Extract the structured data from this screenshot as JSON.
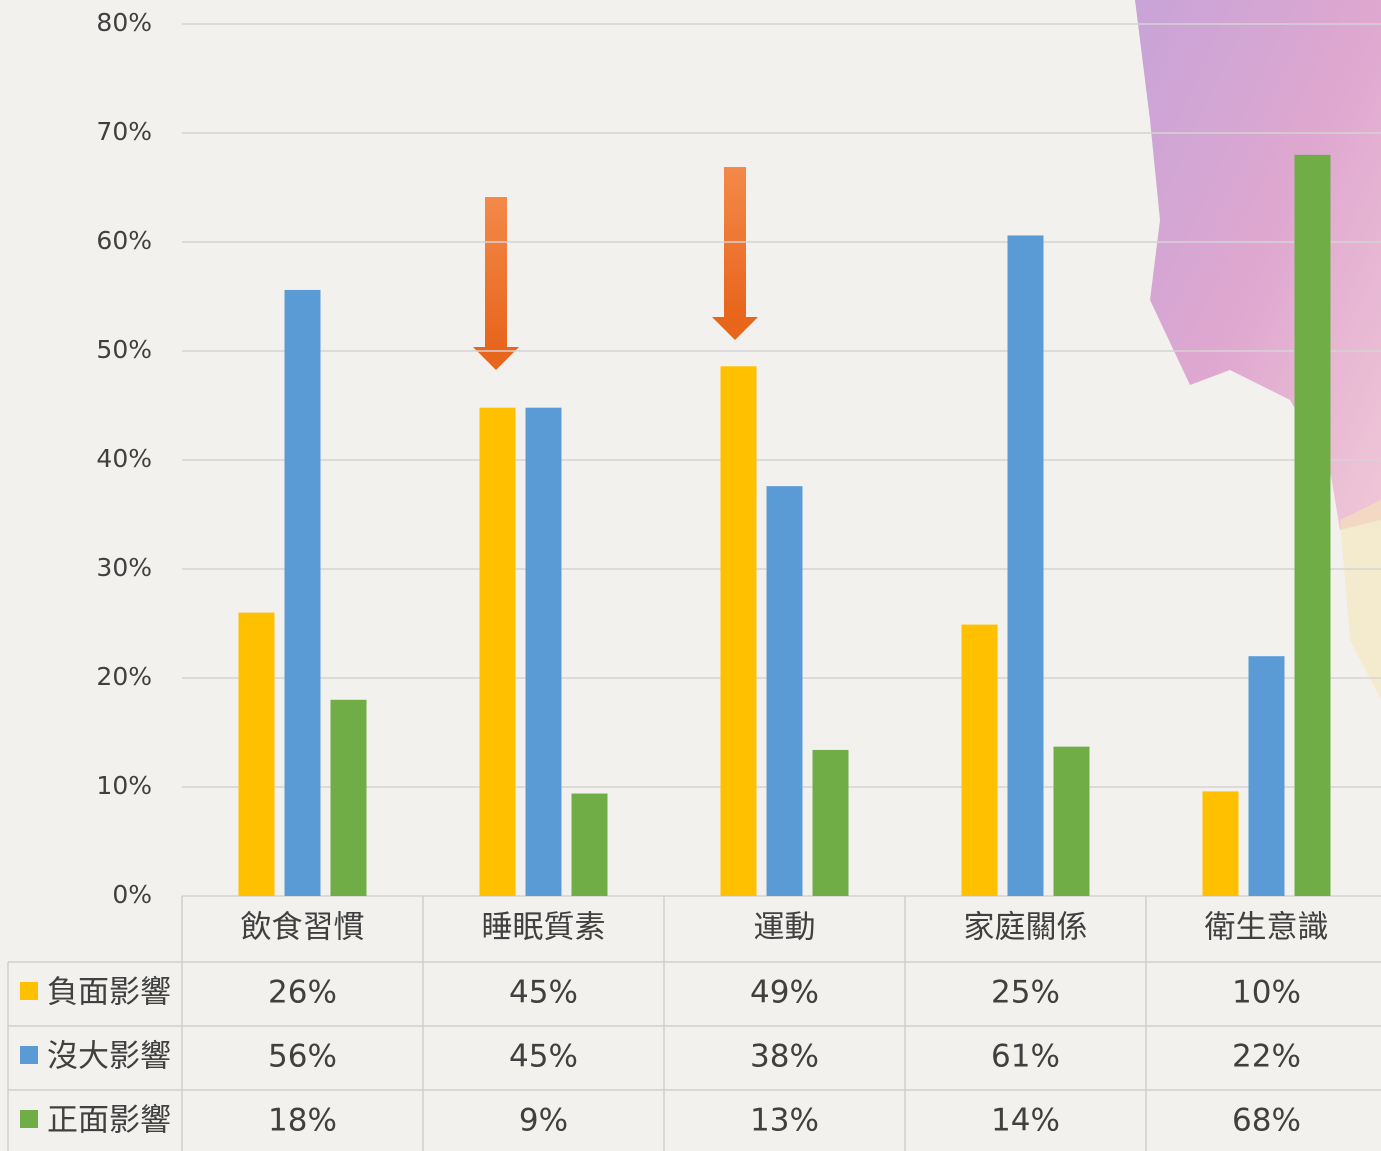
{
  "chart_data": {
    "type": "bar",
    "categories": [
      "飲食習慣",
      "睡眠質素",
      "運動",
      "家庭關係",
      "衛生意識"
    ],
    "series": [
      {
        "name": "負面影響",
        "color": "#ffc000",
        "values": [
          26.0,
          44.8,
          48.6,
          24.9,
          9.6
        ],
        "value_labels": [
          "26%",
          "45%",
          "49%",
          "25%",
          "10%"
        ]
      },
      {
        "name": "沒大影響",
        "color": "#5b9bd5",
        "values": [
          55.6,
          44.8,
          37.6,
          60.6,
          22.0
        ],
        "value_labels": [
          "56%",
          "45%",
          "38%",
          "61%",
          "22%"
        ]
      },
      {
        "name": "正面影響",
        "color": "#70ad47",
        "values": [
          18.0,
          9.4,
          13.4,
          13.7,
          68.0
        ],
        "value_labels": [
          "18%",
          "9%",
          "13%",
          "14%",
          "68%"
        ]
      }
    ],
    "ylim": [
      0,
      80
    ],
    "yticks": [
      {
        "value": 0,
        "label": "0%"
      },
      {
        "value": 10,
        "label": "10%"
      },
      {
        "value": 20,
        "label": "20%"
      },
      {
        "value": 30,
        "label": "30%"
      },
      {
        "value": 40,
        "label": "40%"
      },
      {
        "value": 50,
        "label": "50%"
      },
      {
        "value": 60,
        "label": "60%"
      },
      {
        "value": 70,
        "label": "70%"
      },
      {
        "value": 80,
        "label": "80%"
      }
    ],
    "grid": true
  }
}
